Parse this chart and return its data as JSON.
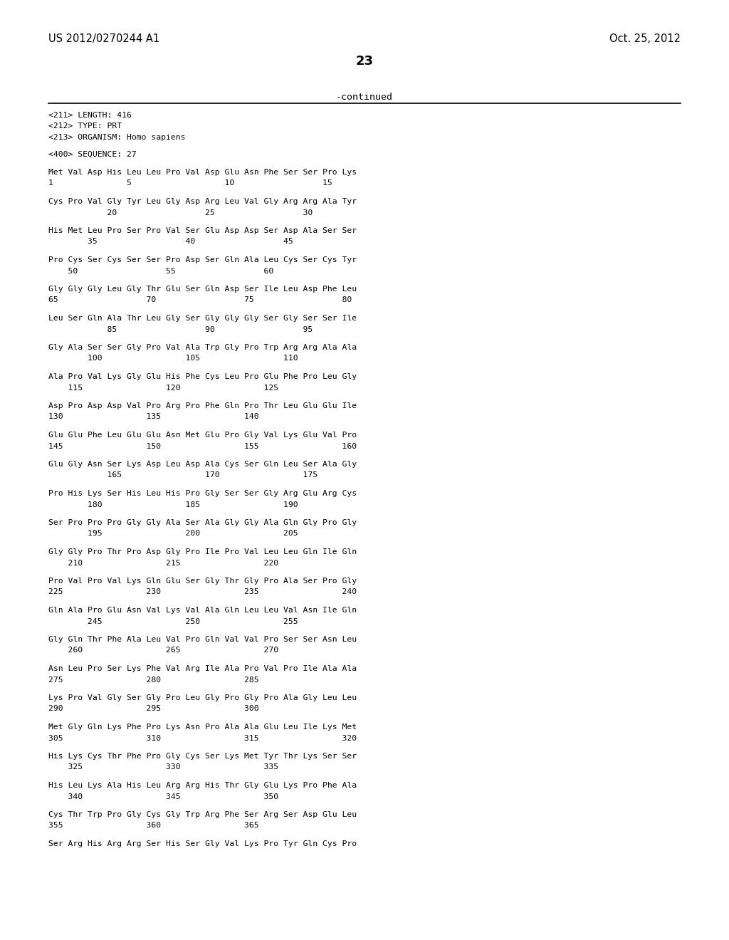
{
  "header_left": "US 2012/0270244 A1",
  "header_right": "Oct. 25, 2012",
  "page_number": "23",
  "continued_text": "-continued",
  "background_color": "#ffffff",
  "text_color": "#000000",
  "line_color": "#000000",
  "sequence_info": [
    "<211> LENGTH: 416",
    "<212> TYPE: PRT",
    "<213> ORGANISM: Homo sapiens"
  ],
  "sequence_header": "<400> SEQUENCE: 27",
  "sequence_blocks": [
    {
      "seq": "Met Val Asp His Leu Leu Pro Val Asp Glu Asn Phe Ser Ser Pro Lys",
      "num": "1               5                   10                  15"
    },
    {
      "seq": "Cys Pro Val Gly Tyr Leu Gly Asp Arg Leu Val Gly Arg Arg Ala Tyr",
      "num": "            20                  25                  30"
    },
    {
      "seq": "His Met Leu Pro Ser Pro Val Ser Glu Asp Asp Ser Asp Ala Ser Ser",
      "num": "        35                  40                  45"
    },
    {
      "seq": "Pro Cys Ser Cys Ser Ser Pro Asp Ser Gln Ala Leu Cys Ser Cys Tyr",
      "num": "    50                  55                  60"
    },
    {
      "seq": "Gly Gly Gly Leu Gly Thr Glu Ser Gln Asp Ser Ile Leu Asp Phe Leu",
      "num": "65                  70                  75                  80"
    },
    {
      "seq": "Leu Ser Gln Ala Thr Leu Gly Ser Gly Gly Gly Ser Gly Ser Ser Ile",
      "num": "            85                  90                  95"
    },
    {
      "seq": "Gly Ala Ser Ser Gly Pro Val Ala Trp Gly Pro Trp Arg Arg Ala Ala",
      "num": "        100                 105                 110"
    },
    {
      "seq": "Ala Pro Val Lys Gly Glu His Phe Cys Leu Pro Glu Phe Pro Leu Gly",
      "num": "    115                 120                 125"
    },
    {
      "seq": "Asp Pro Asp Asp Val Pro Arg Pro Phe Gln Pro Thr Leu Glu Glu Ile",
      "num": "130                 135                 140"
    },
    {
      "seq": "Glu Glu Phe Leu Glu Glu Asn Met Glu Pro Gly Val Lys Glu Val Pro",
      "num": "145                 150                 155                 160"
    },
    {
      "seq": "Glu Gly Asn Ser Lys Asp Leu Asp Ala Cys Ser Gln Leu Ser Ala Gly",
      "num": "            165                 170                 175"
    },
    {
      "seq": "Pro His Lys Ser His Leu His Pro Gly Ser Ser Gly Arg Glu Arg Cys",
      "num": "        180                 185                 190"
    },
    {
      "seq": "Ser Pro Pro Pro Gly Gly Ala Ser Ala Gly Gly Ala Gln Gly Pro Gly",
      "num": "        195                 200                 205"
    },
    {
      "seq": "Gly Gly Pro Thr Pro Asp Gly Pro Ile Pro Val Leu Leu Gln Ile Gln",
      "num": "    210                 215                 220"
    },
    {
      "seq": "Pro Val Pro Val Lys Gln Glu Ser Gly Thr Gly Pro Ala Ser Pro Gly",
      "num": "225                 230                 235                 240"
    },
    {
      "seq": "Gln Ala Pro Glu Asn Val Lys Val Ala Gln Leu Leu Val Asn Ile Gln",
      "num": "        245                 250                 255"
    },
    {
      "seq": "Gly Gln Thr Phe Ala Leu Val Pro Gln Val Val Pro Ser Ser Asn Leu",
      "num": "    260                 265                 270"
    },
    {
      "seq": "Asn Leu Pro Ser Lys Phe Val Arg Ile Ala Pro Val Pro Ile Ala Ala",
      "num": "275                 280                 285"
    },
    {
      "seq": "Lys Pro Val Gly Ser Gly Pro Leu Gly Pro Gly Pro Ala Gly Leu Leu",
      "num": "290                 295                 300"
    },
    {
      "seq": "Met Gly Gln Lys Phe Pro Lys Asn Pro Ala Ala Glu Leu Ile Lys Met",
      "num": "305                 310                 315                 320"
    },
    {
      "seq": "His Lys Cys Thr Phe Pro Gly Cys Ser Lys Met Tyr Thr Lys Ser Ser",
      "num": "    325                 330                 335"
    },
    {
      "seq": "His Leu Lys Ala His Leu Arg Arg His Thr Gly Glu Lys Pro Phe Ala",
      "num": "    340                 345                 350"
    },
    {
      "seq": "Cys Thr Trp Pro Gly Cys Gly Trp Arg Phe Ser Arg Ser Asp Glu Leu",
      "num": "355                 360                 365"
    },
    {
      "seq": "Ser Arg His Arg Arg Ser His Ser Gly Val Lys Pro Tyr Gln Cys Pro",
      "num": ""
    }
  ]
}
